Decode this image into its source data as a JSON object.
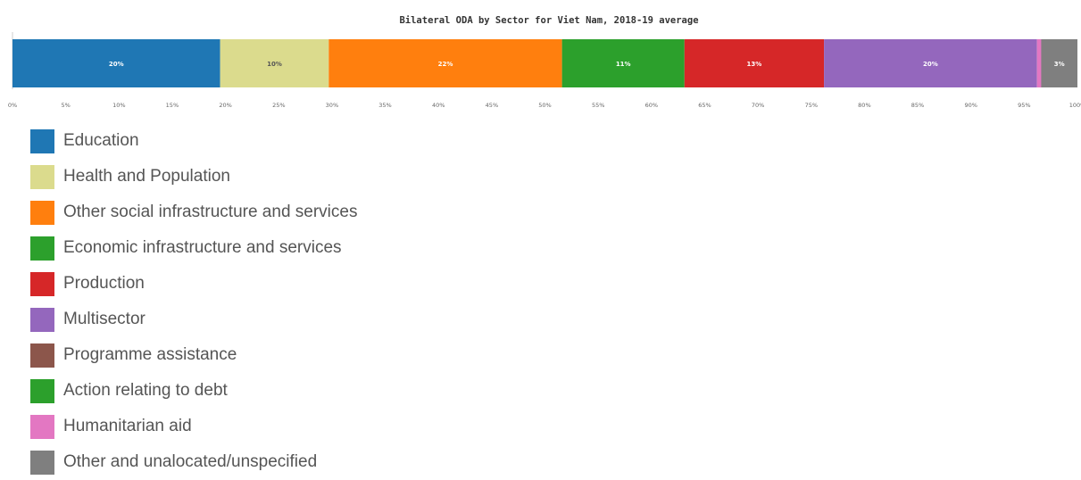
{
  "chart_data": {
    "type": "bar",
    "orientation": "horizontal-stacked-100",
    "title": "Bilateral ODA by Sector for Viet Nam, 2018-19 average",
    "xlim": [
      0,
      100
    ],
    "x_unit": "%",
    "x_ticks": [
      "0%",
      "5%",
      "10%",
      "15%",
      "20%",
      "25%",
      "30%",
      "35%",
      "40%",
      "45%",
      "50%",
      "55%",
      "60%",
      "65%",
      "70%",
      "75%",
      "80%",
      "85%",
      "90%",
      "95%",
      "100%"
    ],
    "grid": false,
    "legend_position": "bottom-left",
    "series": [
      {
        "name": "Education",
        "value": 19.5,
        "data_label": "20%",
        "color": "#1f77b4"
      },
      {
        "name": "Health and Population",
        "value": 10.2,
        "data_label": "10%",
        "color": "#dbdb8d"
      },
      {
        "name": "Other social infrastructure and services",
        "value": 21.9,
        "data_label": "22%",
        "color": "#ff7f0e"
      },
      {
        "name": "Economic infrastructure and services",
        "value": 11.5,
        "data_label": "11%",
        "color": "#2ca02c"
      },
      {
        "name": "Production",
        "value": 13.1,
        "data_label": "13%",
        "color": "#d62728"
      },
      {
        "name": "Multisector",
        "value": 20.0,
        "data_label": "20%",
        "color": "#9467bd"
      },
      {
        "name": "Programme assistance",
        "value": 0,
        "data_label": "",
        "color": "#8c564b"
      },
      {
        "name": "Action relating to debt",
        "value": 0,
        "data_label": "",
        "color": "#2ca02c"
      },
      {
        "name": "Humanitarian aid",
        "value": 0.4,
        "data_label": "",
        "color": "#e377c2"
      },
      {
        "name": "Other and unalocated/unspecified",
        "value": 3.4,
        "data_label": "3%",
        "color": "#7f7f7f"
      }
    ]
  }
}
